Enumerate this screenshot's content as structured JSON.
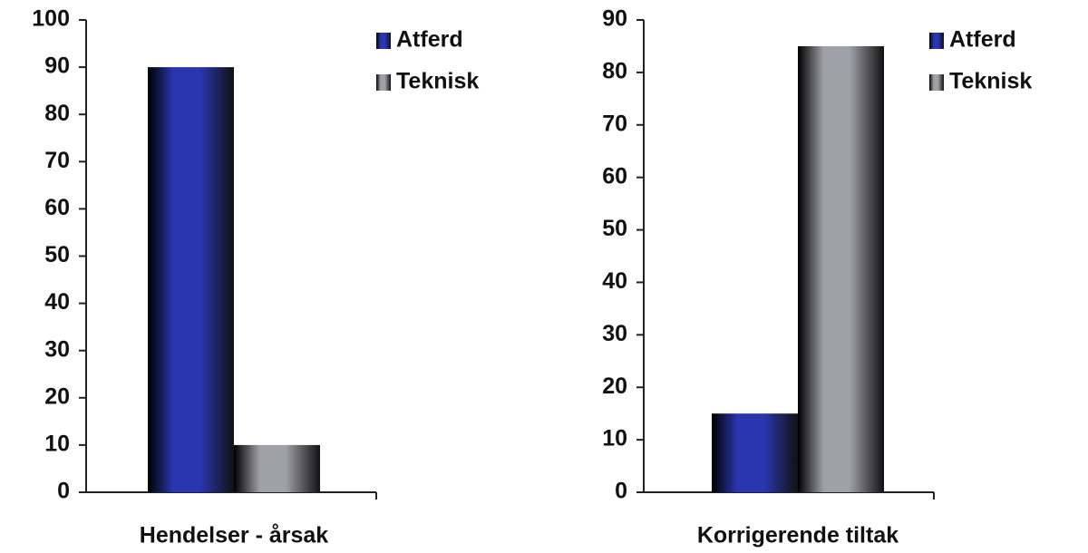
{
  "chart_data": [
    {
      "type": "bar",
      "categories": [
        "Hendelser - årsak"
      ],
      "series": [
        {
          "name": "Atferd",
          "color": "#2a36b0",
          "values": [
            90
          ]
        },
        {
          "name": "Teknisk",
          "color": "#a0a0a8",
          "values": [
            10
          ]
        }
      ],
      "ylim": [
        0,
        100
      ],
      "yticks": [
        0,
        10,
        20,
        30,
        40,
        50,
        60,
        70,
        80,
        90,
        100
      ]
    },
    {
      "type": "bar",
      "categories": [
        "Korrigerende tiltak"
      ],
      "series": [
        {
          "name": "Atferd",
          "color": "#2a36b0",
          "values": [
            15
          ]
        },
        {
          "name": "Teknisk",
          "color": "#a0a0a8",
          "values": [
            85
          ]
        }
      ],
      "ylim": [
        0,
        90
      ],
      "yticks": [
        0,
        10,
        20,
        30,
        40,
        50,
        60,
        70,
        80,
        90
      ]
    }
  ]
}
